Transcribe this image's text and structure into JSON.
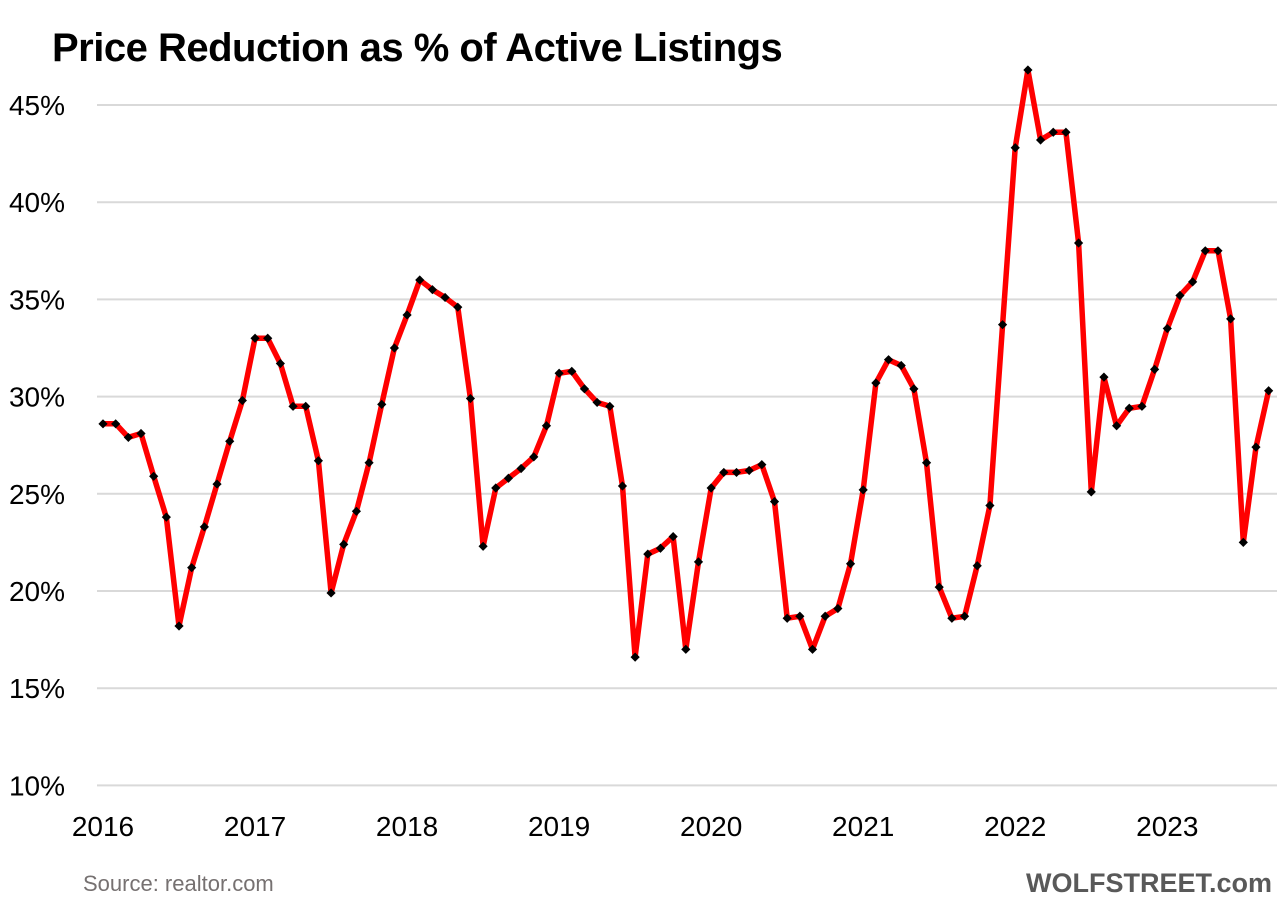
{
  "chart": {
    "title": "Price Reduction as % of Active Listings",
    "source": "Source: realtor.com",
    "brand": "WOLFSTREET.com"
  },
  "colors": {
    "line": "#FF0000",
    "marker": "#000000",
    "gridline": "#D9D9D9",
    "axis_text": "#000000",
    "source_text": "#767171",
    "brand_text": "#595959",
    "background": "#FFFFFF"
  },
  "chart_data": {
    "type": "line",
    "title": "Price Reduction as % of Active Listings",
    "series_name": "Price reduction as % of active listings",
    "x": [
      "2016-07",
      "2016-08",
      "2016-09",
      "2016-10",
      "2016-11",
      "2016-12",
      "2017-01",
      "2017-02",
      "2017-03",
      "2017-04",
      "2017-05",
      "2017-06",
      "2017-07",
      "2017-08",
      "2017-09",
      "2017-10",
      "2017-11",
      "2017-12",
      "2018-01",
      "2018-02",
      "2018-03",
      "2018-04",
      "2018-05",
      "2018-06",
      "2018-07",
      "2018-08",
      "2018-09",
      "2018-10",
      "2018-11",
      "2018-12",
      "2019-01",
      "2019-02",
      "2019-03",
      "2019-04",
      "2019-05",
      "2019-06",
      "2019-07",
      "2019-08",
      "2019-09",
      "2019-10",
      "2019-11",
      "2019-12",
      "2020-01",
      "2020-02",
      "2020-03",
      "2020-04",
      "2020-05",
      "2020-06",
      "2020-07",
      "2020-08",
      "2020-09",
      "2020-10",
      "2020-11",
      "2020-12",
      "2021-01",
      "2021-02",
      "2021-03",
      "2021-04",
      "2021-05",
      "2021-06",
      "2021-07",
      "2021-08",
      "2021-09",
      "2021-10",
      "2021-11",
      "2021-12",
      "2022-01",
      "2022-02",
      "2022-03",
      "2022-04",
      "2022-05",
      "2022-06",
      "2022-07",
      "2022-08",
      "2022-09",
      "2022-10",
      "2022-11",
      "2022-12",
      "2023-01",
      "2023-02",
      "2023-03",
      "2023-04",
      "2023-05",
      "2023-06",
      "2023-07",
      "2023-08",
      "2023-09",
      "2023-10",
      "2023-11",
      "2023-12",
      "2024-01",
      "2024-02",
      "2024-03"
    ],
    "values": [
      28.6,
      28.6,
      27.9,
      28.1,
      25.9,
      23.8,
      18.2,
      21.2,
      23.3,
      25.5,
      27.7,
      29.8,
      33.0,
      33.0,
      31.7,
      29.5,
      29.5,
      26.7,
      19.9,
      22.4,
      24.1,
      26.6,
      29.6,
      32.5,
      34.2,
      36.0,
      35.5,
      35.1,
      34.6,
      29.9,
      22.3,
      25.3,
      25.8,
      26.3,
      26.9,
      28.5,
      31.2,
      31.3,
      30.4,
      29.7,
      29.5,
      25.4,
      16.6,
      21.9,
      22.2,
      22.8,
      17.0,
      21.5,
      25.3,
      26.1,
      26.1,
      26.2,
      26.5,
      24.6,
      18.6,
      18.7,
      17.0,
      18.7,
      19.1,
      21.4,
      25.2,
      30.7,
      31.9,
      31.6,
      30.4,
      26.6,
      20.2,
      18.6,
      18.7,
      21.3,
      24.4,
      33.7,
      42.8,
      46.8,
      43.2,
      43.6,
      43.6,
      37.9,
      25.1,
      31.0,
      28.5,
      29.4,
      29.5,
      31.4,
      33.5,
      35.2,
      35.9,
      37.5,
      37.5,
      34.0,
      22.5,
      27.4,
      30.3
    ],
    "xlabel": "",
    "ylabel": "",
    "ylim": [
      10,
      45
    ],
    "y_ticks": [
      45,
      40,
      35,
      30,
      25,
      20,
      15,
      10
    ],
    "y_tick_labels": [
      "45%",
      "40%",
      "35%",
      "30%",
      "25%",
      "20%",
      "15%",
      "10%"
    ],
    "x_tick_labels": [
      "2016",
      "2017",
      "2018",
      "2019",
      "2020",
      "2021",
      "2022",
      "2023"
    ],
    "x_tick_indices": [
      0,
      12,
      24,
      36,
      48,
      60,
      72,
      84
    ],
    "grid": true,
    "legend": false,
    "marker": "diamond"
  }
}
